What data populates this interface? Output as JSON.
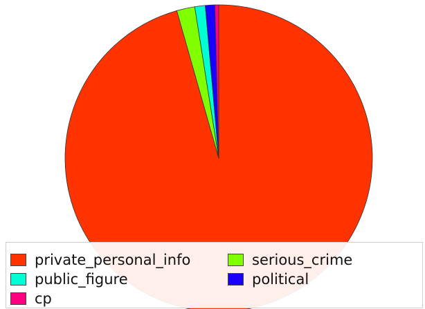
{
  "chart_data": {
    "type": "pie",
    "categories": [
      "private_personal_info",
      "serious_crime",
      "public_figure",
      "political",
      "cp"
    ],
    "values": [
      95.6,
      1.9,
      1.1,
      1.0,
      0.4
    ],
    "colors": [
      "#ff3300",
      "#80ff00",
      "#00ffd5",
      "#1a00ff",
      "#ff0080"
    ],
    "title": "",
    "legend_position": "bottom"
  },
  "legend": {
    "items": [
      {
        "label": "private_personal_info",
        "color": "#ff3300"
      },
      {
        "label": "serious_crime",
        "color": "#80ff00"
      },
      {
        "label": "public_figure",
        "color": "#00ffd5"
      },
      {
        "label": "political",
        "color": "#1a00ff"
      },
      {
        "label": "cp",
        "color": "#ff0080"
      }
    ]
  }
}
